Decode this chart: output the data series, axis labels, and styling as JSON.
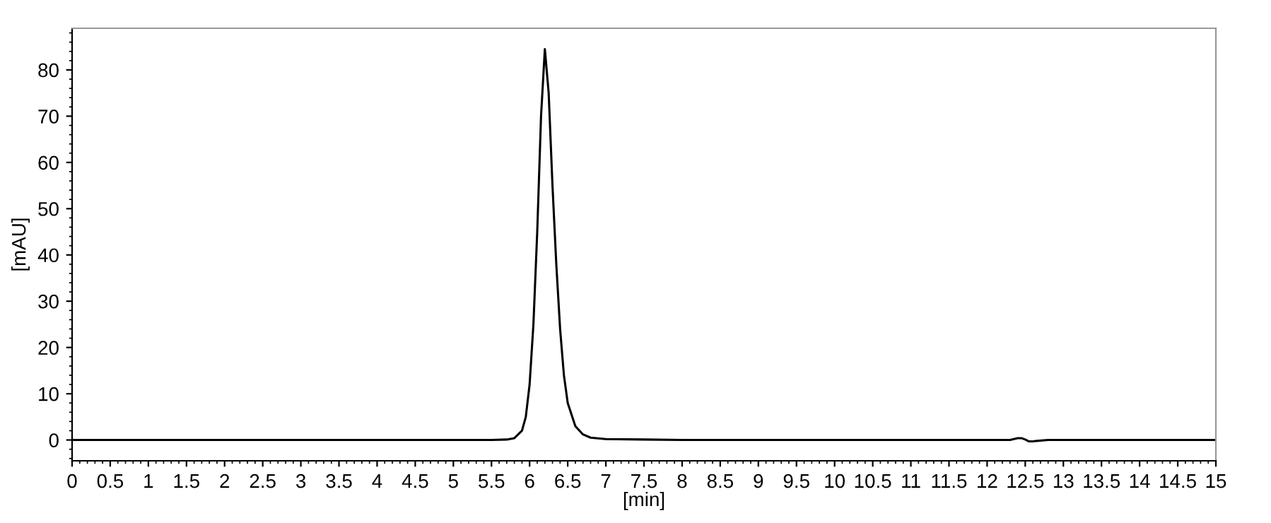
{
  "chart_data": {
    "type": "line",
    "xlabel": "[min]",
    "ylabel": "[mAU]",
    "series": [
      {
        "color": "#000000",
        "x": [
          0,
          2,
          4,
          5.5,
          5.7,
          5.8,
          5.9,
          5.95,
          6.0,
          6.05,
          6.1,
          6.15,
          6.2,
          6.25,
          6.3,
          6.35,
          6.4,
          6.45,
          6.5,
          6.6,
          6.7,
          6.8,
          7.0,
          7.5,
          8,
          10,
          12.3,
          12.4,
          12.45,
          12.5,
          12.55,
          12.6,
          12.65,
          12.8,
          14,
          15
        ],
        "values": [
          0,
          0,
          0,
          0,
          0.1,
          0.4,
          2,
          5,
          12,
          25,
          45,
          70,
          84.5,
          75,
          55,
          38,
          24,
          14,
          8,
          3,
          1.2,
          0.5,
          0.2,
          0.1,
          0,
          0,
          0,
          0.4,
          0.4,
          0.1,
          -0.3,
          -0.3,
          -0.2,
          0,
          0,
          0
        ]
      }
    ],
    "xlim": [
      0,
      15
    ],
    "ylim": [
      -4.5,
      89
    ],
    "xticks": [
      0,
      0.5,
      1,
      1.5,
      2,
      2.5,
      3,
      3.5,
      4,
      4.5,
      5,
      5.5,
      6,
      6.5,
      7,
      7.5,
      8,
      8.5,
      9,
      9.5,
      10,
      10.5,
      11,
      11.5,
      12,
      12.5,
      13,
      13.5,
      14,
      14.5,
      15
    ],
    "yticks": [
      0,
      10,
      20,
      30,
      40,
      50,
      60,
      70,
      80
    ],
    "grid": false,
    "legend": false,
    "marker": "none",
    "line_style": "solid"
  }
}
